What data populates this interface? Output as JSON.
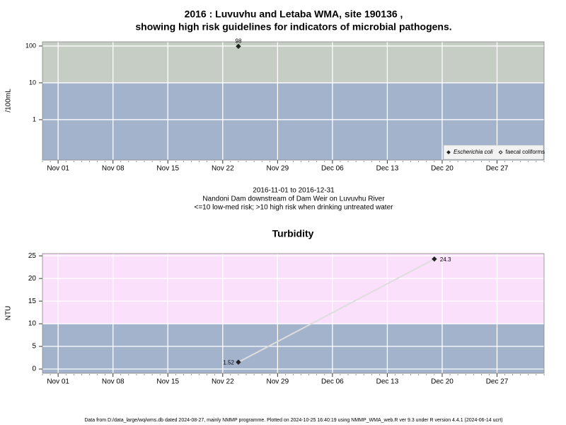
{
  "chart_data": [
    {
      "type": "scatter",
      "title": [
        "2016 : Luvuvhu and Letaba WMA, site 190136 ,",
        "showing high risk guidelines for indicators of microbial pathogens."
      ],
      "ylabel": "/100mL",
      "log_y": true,
      "ylim": [
        0.08,
        130
      ],
      "yticks": [
        1,
        10,
        100
      ],
      "xlim": [
        "Oct 30",
        "Jan 02"
      ],
      "xticks": [
        "Nov 01",
        "Nov 08",
        "Nov 15",
        "Nov 22",
        "Nov 29",
        "Dec 06",
        "Dec 13",
        "Dec 20",
        "Dec 27"
      ],
      "threshold": 10,
      "band_colors": [
        "#a3b3cc",
        "#c5cdc4"
      ],
      "grid": true,
      "legend": "lower right",
      "series": [
        {
          "name": "Escherichia coli",
          "color": "#222222",
          "marker": "filled",
          "x": [
            "Nov 24"
          ],
          "values": [
            98
          ],
          "value_labels": [
            "98"
          ]
        },
        {
          "name": "faecal coliforms",
          "color": "#222222",
          "marker": "open",
          "x": [],
          "values": []
        }
      ]
    },
    {
      "type": "line",
      "title": "Turbidity",
      "ylabel": "NTU",
      "log_y": false,
      "ylim": [
        -0.94,
        25.5
      ],
      "yticks": [
        0,
        5,
        10,
        15,
        20,
        25
      ],
      "xlim": [
        "Oct 30",
        "Jan 02"
      ],
      "xticks": [
        "Nov 01",
        "Nov 08",
        "Nov 15",
        "Nov 22",
        "Nov 29",
        "Dec 06",
        "Dec 13",
        "Dec 20",
        "Dec 27"
      ],
      "threshold": 10,
      "band_colors": [
        "#a3b3cc",
        "#fbe0fb"
      ],
      "grid": true,
      "series": [
        {
          "name": "Turbidity",
          "color": "#222222",
          "line_color": "#dddddd",
          "x": [
            "Nov 24",
            "Dec 19"
          ],
          "values": [
            1.52,
            24.3
          ],
          "value_labels": [
            "1.52",
            "24.3"
          ]
        }
      ]
    }
  ],
  "caption": [
    "2016-11-01 to 2016-12-31",
    "Nandoni Dam downstream of Dam Weir on Luvuvhu River",
    "<=10 low-med risk; >10 high risk when drinking untreated water"
  ],
  "footer": "Data from D:/data_large/wq/wms.db dated 2024-08-27, mainly NMMP programme. Plotted on 2024-10-25 16:40:19 using NMMP_WMA_web.R ver 9.3 under R version 4.4.1 (2024-06-14 ucrt)"
}
